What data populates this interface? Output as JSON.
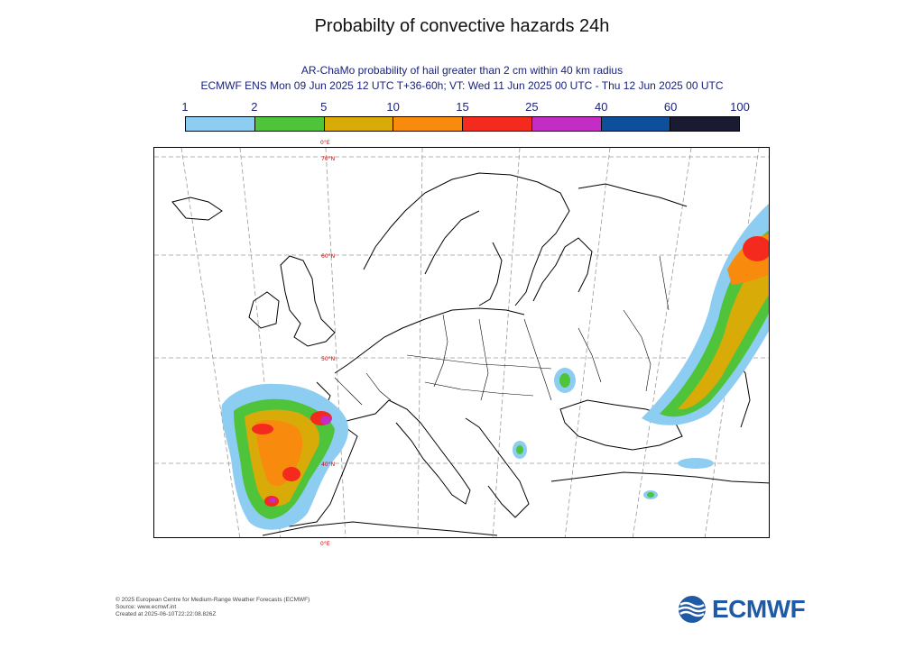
{
  "title": "Probabilty of convective hazards 24h",
  "subtitle_line1": "AR-ChaMo probability of hail greater than 2 cm within 40 km radius",
  "subtitle_line2": "ECMWF ENS Mon 09 Jun 2025 12 UTC T+36-60h; VT: Wed 11 Jun 2025 00 UTC - Thu 12 Jun 2025 00 UTC",
  "legend": {
    "ticks": [
      "1",
      "2",
      "5",
      "10",
      "15",
      "25",
      "40",
      "60",
      "100"
    ],
    "colors": [
      "#8dcdf2",
      "#4fc43a",
      "#d8ab08",
      "#f88a0e",
      "#f52a1e",
      "#c32dc3",
      "#0e4f9c",
      "#1a1b32"
    ]
  },
  "map": {
    "lat_labels": [
      "70°N",
      "60°N",
      "50°N",
      "40°N"
    ],
    "lon_label_top": "0°E",
    "lon_label_bottom": "0°E"
  },
  "footer": {
    "copyright": "© 2025 European Centre for Medium-Range Weather Forecasts (ECMWF)",
    "source": "Source: www.ecmwf.int",
    "created": "Created at 2025-06-10T22:22:08.826Z"
  },
  "logo": {
    "text": "ECMWF",
    "color": "#1f5aa6"
  }
}
